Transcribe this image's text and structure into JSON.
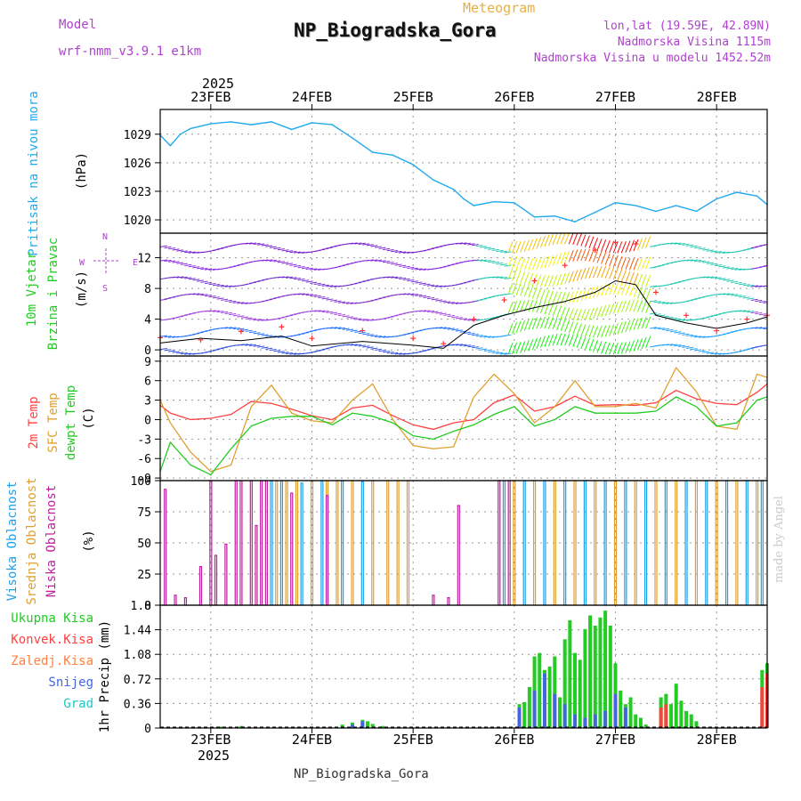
{
  "header": {
    "meteogram": "Meteogram",
    "title": "NP_Biogradska_Gora",
    "model_label": "Model",
    "model_value": "wrf-nmm_v3.9.1 e1km",
    "lonlat": "lon,lat (19.59E, 42.89N)",
    "altitude": "Nadmorska Visina 1115m",
    "model_altitude": "Nadmorska Visina u modelu 1452.52m"
  },
  "footer": {
    "station": "NP_Biogradska_Gora",
    "credit": "made by Angel"
  },
  "colors": {
    "pressure": "#22aaee",
    "t2m": "#ff4040",
    "sfc": "#e0a030",
    "dewpt": "#22cc22",
    "high_cloud": "#1ea0e8",
    "mid_cloud": "#e0a030",
    "low_cloud": "#c020a0",
    "total_precip": "#22cc22",
    "snow": "#4466dd",
    "wind_mean": "#000000"
  },
  "chart_data": [
    {
      "type": "line",
      "panel": "pressure",
      "ylabel": [
        "Pritisak na nivou mora",
        "(hPa)"
      ],
      "yticks": [
        1020,
        1023,
        1026,
        1029
      ],
      "ylim": [
        1018.6,
        1031.6
      ],
      "x_range_days": [
        22.5,
        28.5
      ],
      "top_axis": {
        "year": "2025",
        "ticks": [
          "23FEB",
          "24FEB",
          "25FEB",
          "26FEB",
          "27FEB",
          "28FEB"
        ]
      },
      "series": [
        {
          "name": "Pritisak na nivou mora",
          "x": [
            22.5,
            22.6,
            22.7,
            22.8,
            23.0,
            23.2,
            23.4,
            23.6,
            23.8,
            24.0,
            24.2,
            24.4,
            24.6,
            24.8,
            25.0,
            25.2,
            25.4,
            25.5,
            25.6,
            25.8,
            26.0,
            26.2,
            26.4,
            26.6,
            26.8,
            27.0,
            27.2,
            27.4,
            27.6,
            27.8,
            28.0,
            28.2,
            28.4,
            28.5
          ],
          "values": [
            1028.9,
            1027.8,
            1029.0,
            1029.6,
            1030.1,
            1030.3,
            1030.0,
            1030.3,
            1029.5,
            1030.2,
            1030.0,
            1028.6,
            1027.1,
            1026.8,
            1025.8,
            1024.2,
            1023.2,
            1022.2,
            1021.5,
            1021.9,
            1021.8,
            1020.3,
            1020.4,
            1019.8,
            1020.8,
            1021.8,
            1021.5,
            1020.9,
            1021.5,
            1020.9,
            1022.2,
            1022.9,
            1022.5,
            1021.6
          ]
        }
      ]
    },
    {
      "type": "line",
      "panel": "wind",
      "ylabel": [
        "10m Vjetar",
        "Brzina i Pravac",
        "(m/s)"
      ],
      "compass": "W E N S",
      "yticks": [
        0,
        4,
        8,
        12
      ],
      "ylim": [
        -0.8,
        15.2
      ],
      "series": [
        {
          "name": "mean",
          "x": [
            22.5,
            22.9,
            23.3,
            23.7,
            24.0,
            24.5,
            25.0,
            25.3,
            25.6,
            25.9,
            26.2,
            26.5,
            26.8,
            27.0,
            27.2,
            27.4,
            27.7,
            28.0,
            28.3,
            28.5
          ],
          "values": [
            0.9,
            1.5,
            1.2,
            1.8,
            0.5,
            1.1,
            0.6,
            0.2,
            3.2,
            4.5,
            5.5,
            6.3,
            7.5,
            9.0,
            8.5,
            4.5,
            3.5,
            2.8,
            3.5,
            4.3
          ]
        },
        {
          "name": "gust",
          "x": [
            22.5,
            22.9,
            23.3,
            23.7,
            24.0,
            24.5,
            25.0,
            25.3,
            25.6,
            25.9,
            26.2,
            26.5,
            26.8,
            27.0,
            27.2,
            27.4,
            27.7,
            28.0,
            28.3,
            28.5
          ],
          "values": [
            1.6,
            1.3,
            2.4,
            3.0,
            1.5,
            2.5,
            1.5,
            0.8,
            4.0,
            6.5,
            9.0,
            11.0,
            13.0,
            14.0,
            13.8,
            7.5,
            4.5,
            2.5,
            4.0,
            4.5
          ]
        }
      ]
    },
    {
      "type": "line",
      "panel": "temperature",
      "ylabel": [
        "2m Temp",
        "SFC Temp",
        "dewpt Temp",
        "(C)"
      ],
      "yticks": [
        -9,
        -6,
        -3,
        0,
        3,
        6,
        9
      ],
      "ylim": [
        -9.4,
        9.8
      ],
      "series": [
        {
          "name": "2m Temp",
          "x": [
            22.5,
            22.6,
            22.8,
            23.0,
            23.2,
            23.4,
            23.6,
            23.8,
            24.0,
            24.2,
            24.4,
            24.6,
            24.8,
            25.0,
            25.2,
            25.4,
            25.6,
            25.8,
            26.0,
            26.2,
            26.4,
            26.6,
            26.8,
            27.0,
            27.2,
            27.4,
            27.6,
            27.8,
            28.0,
            28.2,
            28.4,
            28.5
          ],
          "values": [
            2.2,
            1.0,
            0.0,
            0.2,
            0.8,
            2.8,
            2.5,
            1.6,
            0.6,
            0.0,
            1.8,
            2.2,
            0.6,
            -0.8,
            -1.5,
            -0.5,
            0.0,
            2.6,
            3.8,
            1.3,
            2.0,
            3.6,
            2.2,
            2.3,
            2.2,
            2.6,
            4.5,
            3.2,
            2.5,
            2.3,
            4.2,
            5.5
          ]
        },
        {
          "name": "SFC Temp",
          "x": [
            22.5,
            22.6,
            22.8,
            23.0,
            23.2,
            23.4,
            23.6,
            23.8,
            24.0,
            24.2,
            24.4,
            24.6,
            24.8,
            25.0,
            25.2,
            25.4,
            25.6,
            25.8,
            26.0,
            26.2,
            26.4,
            26.6,
            26.8,
            27.0,
            27.2,
            27.4,
            27.6,
            27.8,
            28.0,
            28.2,
            28.4,
            28.5
          ],
          "values": [
            3.0,
            -0.5,
            -5.0,
            -8.0,
            -7.0,
            2.0,
            5.3,
            1.0,
            -0.2,
            -0.5,
            3.0,
            5.5,
            0.0,
            -4.0,
            -4.5,
            -4.2,
            3.5,
            7.0,
            4.0,
            -0.5,
            2.0,
            6.0,
            2.0,
            2.0,
            2.5,
            1.8,
            8.0,
            4.3,
            -1.0,
            -1.5,
            7.0,
            6.5
          ]
        },
        {
          "name": "dewpt Temp",
          "x": [
            22.5,
            22.6,
            22.8,
            23.0,
            23.2,
            23.4,
            23.6,
            23.8,
            24.0,
            24.2,
            24.4,
            24.6,
            24.8,
            25.0,
            25.2,
            25.4,
            25.6,
            25.8,
            26.0,
            26.2,
            26.4,
            26.6,
            26.8,
            27.0,
            27.2,
            27.4,
            27.6,
            27.8,
            28.0,
            28.2,
            28.4,
            28.5
          ],
          "values": [
            -8.0,
            -3.5,
            -7.0,
            -8.5,
            -4.5,
            -1.0,
            0.2,
            0.5,
            0.5,
            -0.8,
            1.0,
            0.5,
            -0.5,
            -2.5,
            -3.0,
            -1.8,
            -0.8,
            0.8,
            2.0,
            -1.0,
            0.0,
            2.0,
            1.0,
            1.0,
            1.0,
            1.3,
            3.5,
            2.0,
            -1.0,
            -0.5,
            3.0,
            3.5
          ]
        }
      ]
    },
    {
      "type": "bar",
      "panel": "cloud",
      "ylabel": [
        "Visoka Oblacnost",
        "Srednja Oblacnost",
        "Niska Oblacnost",
        "(%)"
      ],
      "yticks": [
        0,
        25,
        50,
        75,
        100
      ],
      "ylim": [
        0,
        100
      ],
      "series": [
        {
          "name": "Visoka Oblacnost",
          "x": [
            23.6,
            23.7,
            23.9,
            24.1,
            24.3,
            24.5,
            25.9,
            26.1,
            26.3,
            26.5,
            26.7,
            26.9,
            27.1,
            27.3,
            27.5,
            27.7,
            27.9,
            28.1,
            28.3,
            28.45
          ],
          "values": [
            100,
            100,
            98,
            100,
            100,
            99,
            100,
            100,
            100,
            100,
            100,
            100,
            100,
            100,
            100,
            100,
            100,
            100,
            100,
            100
          ]
        },
        {
          "name": "Srednja Oblacnost",
          "x": [
            23.65,
            23.75,
            23.85,
            24.0,
            24.15,
            24.25,
            24.4,
            24.6,
            24.75,
            24.85,
            24.95,
            26.0,
            26.2,
            26.4,
            26.6,
            26.8,
            27.0,
            27.2,
            27.4,
            27.6,
            27.8,
            28.0,
            28.2,
            28.4
          ],
          "values": [
            100,
            100,
            100,
            100,
            100,
            100,
            100,
            100,
            100,
            100,
            100,
            100,
            100,
            100,
            100,
            100,
            100,
            100,
            100,
            100,
            100,
            100,
            100,
            100
          ]
        },
        {
          "name": "Niska Oblacnost",
          "x": [
            22.55,
            22.65,
            22.75,
            22.9,
            23.0,
            23.05,
            23.15,
            23.25,
            23.3,
            23.4,
            23.45,
            23.5,
            23.55,
            23.8,
            24.15,
            25.2,
            25.35,
            25.45,
            25.85,
            25.95
          ],
          "values": [
            93,
            8,
            6,
            31,
            100,
            40,
            49,
            100,
            100,
            100,
            64,
            100,
            100,
            90,
            88,
            8,
            6,
            80,
            100,
            100
          ]
        }
      ]
    },
    {
      "type": "bar",
      "panel": "precip",
      "ylabel": [
        "Ukupna Kisa",
        "Konvek.Kisa",
        "Zaledj.Kisa",
        "Snijeg",
        "Grad",
        "1hr Precip (mm)"
      ],
      "yticks": [
        0,
        0.36,
        0.72,
        1.08,
        1.44,
        1.8
      ],
      "ylim": [
        0,
        1.8
      ],
      "bottom_axis": {
        "year": "2025",
        "ticks": [
          "23FEB",
          "24FEB",
          "25FEB",
          "26FEB",
          "27FEB",
          "28FEB"
        ]
      },
      "series": [
        {
          "name": "Ukupna Kisa",
          "x": [
            23.1,
            23.3,
            23.5,
            24.3,
            24.4,
            24.5,
            24.55,
            24.6,
            24.7,
            26.05,
            26.1,
            26.15,
            26.2,
            26.25,
            26.3,
            26.35,
            26.4,
            26.45,
            26.5,
            26.55,
            26.6,
            26.65,
            26.7,
            26.75,
            26.8,
            26.85,
            26.9,
            26.95,
            27.0,
            27.05,
            27.1,
            27.15,
            27.2,
            27.25,
            27.3,
            27.45,
            27.5,
            27.55,
            27.6,
            27.65,
            27.7,
            27.75,
            27.8,
            28.45,
            28.5
          ],
          "values": [
            0.02,
            0.03,
            0.02,
            0.05,
            0.08,
            0.12,
            0.1,
            0.06,
            0.03,
            0.35,
            0.38,
            0.6,
            1.05,
            1.1,
            0.85,
            0.9,
            1.05,
            0.45,
            1.3,
            1.58,
            1.1,
            1.0,
            1.45,
            1.65,
            1.5,
            1.62,
            1.72,
            1.5,
            0.95,
            0.55,
            0.35,
            0.45,
            0.2,
            0.15,
            0.05,
            0.45,
            0.5,
            0.35,
            0.65,
            0.4,
            0.25,
            0.2,
            0.1,
            0.85,
            0.95
          ]
        },
        {
          "name": "Snijeg",
          "x": [
            24.4,
            24.5,
            26.05,
            26.2,
            26.3,
            26.4,
            26.5,
            26.6,
            26.7,
            26.8,
            26.9,
            27.0,
            27.1
          ],
          "values": [
            0.05,
            0.1,
            0.3,
            0.55,
            0.8,
            0.5,
            0.35,
            0.2,
            0.15,
            0.2,
            0.25,
            0.5,
            0.3
          ]
        },
        {
          "name": "Konvek.Kisa",
          "x": [
            27.45,
            27.5,
            28.45,
            28.5
          ],
          "values": [
            0.3,
            0.35,
            0.6,
            0.8
          ]
        }
      ]
    }
  ]
}
